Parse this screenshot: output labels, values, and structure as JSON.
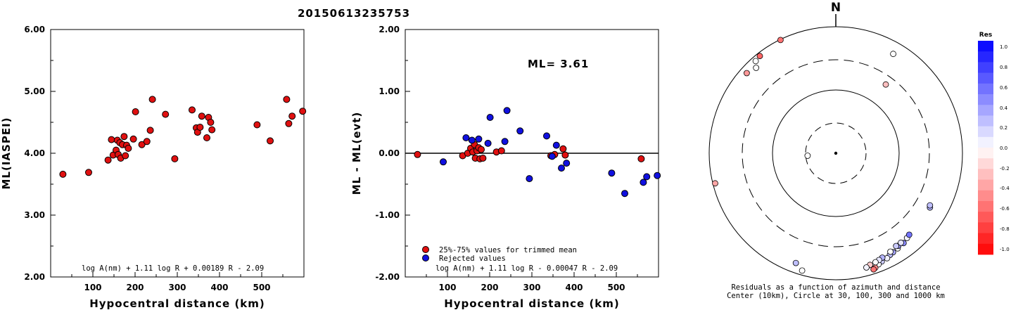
{
  "chart_data": [
    {
      "id": "left",
      "type": "scatter",
      "title": "20150613235753",
      "xlabel": "Hypocentral distance (km)",
      "ylabel": "ML(IASPEI)",
      "xlim": [
        0,
        600
      ],
      "ylim": [
        2.0,
        6.0
      ],
      "x_ticks": [
        100,
        200,
        300,
        400,
        500
      ],
      "y_ticks": [
        "2.00",
        "3.00",
        "4.00",
        "5.00",
        "6.00"
      ],
      "annotation": "log A(nm) + 1.11 log R + 0.00189 R - 2.09",
      "color": "#e01010",
      "points": [
        [
          29,
          3.66
        ],
        [
          90,
          3.69
        ],
        [
          136,
          3.89
        ],
        [
          144,
          4.22
        ],
        [
          148,
          3.97
        ],
        [
          155,
          4.05
        ],
        [
          158,
          4.21
        ],
        [
          160,
          3.98
        ],
        [
          164,
          4.17
        ],
        [
          166,
          3.92
        ],
        [
          170,
          4.14
        ],
        [
          174,
          4.27
        ],
        [
          177,
          3.96
        ],
        [
          180,
          4.13
        ],
        [
          184,
          4.08
        ],
        [
          196,
          4.23
        ],
        [
          201,
          4.67
        ],
        [
          216,
          4.14
        ],
        [
          228,
          4.19
        ],
        [
          236,
          4.37
        ],
        [
          241,
          4.87
        ],
        [
          272,
          4.63
        ],
        [
          294,
          3.91
        ],
        [
          335,
          4.7
        ],
        [
          345,
          4.41
        ],
        [
          348,
          4.34
        ],
        [
          354,
          4.42
        ],
        [
          358,
          4.6
        ],
        [
          370,
          4.25
        ],
        [
          374,
          4.58
        ],
        [
          379,
          4.5
        ],
        [
          382,
          4.38
        ],
        [
          489,
          4.46
        ],
        [
          520,
          4.2
        ],
        [
          559,
          4.87
        ],
        [
          564,
          4.48
        ],
        [
          572,
          4.6
        ],
        [
          597,
          4.68
        ]
      ]
    },
    {
      "id": "middle",
      "type": "scatter",
      "title": "",
      "xlabel": "Hypocentral distance (km)",
      "ylabel": "ML - ML(evt)",
      "xlim": [
        0,
        600
      ],
      "ylim": [
        -2.0,
        2.0
      ],
      "x_ticks": [
        100,
        200,
        300,
        400,
        500
      ],
      "y_ticks": [
        "-2.00",
        "-1.00",
        "0.00",
        "1.00",
        "2.00"
      ],
      "ml_label": "ML= 3.61",
      "annotation": "log A(nm) + 1.11 log R - 0.00047 R - 2.09",
      "legend": [
        {
          "label": "25%-75% values for trimmed mean",
          "color": "#e01010"
        },
        {
          "label": "Rejected values",
          "color": "#1010e0"
        }
      ],
      "series": [
        {
          "name": "25%-75% values for trimmed mean",
          "color": "#e01010",
          "points": [
            [
              29,
              -0.02
            ],
            [
              136,
              -0.04
            ],
            [
              148,
              0.0
            ],
            [
              155,
              0.08
            ],
            [
              160,
              0.02
            ],
            [
              164,
              0.14
            ],
            [
              166,
              -0.08
            ],
            [
              170,
              0.04
            ],
            [
              174,
              0.09
            ],
            [
              177,
              -0.09
            ],
            [
              180,
              0.06
            ],
            [
              184,
              -0.08
            ],
            [
              216,
              0.02
            ],
            [
              228,
              0.04
            ],
            [
              345,
              -0.04
            ],
            [
              354,
              -0.02
            ],
            [
              374,
              0.07
            ],
            [
              379,
              -0.03
            ],
            [
              559,
              -0.09
            ]
          ]
        },
        {
          "name": "Rejected values",
          "color": "#1010e0",
          "points": [
            [
              90,
              -0.14
            ],
            [
              144,
              0.25
            ],
            [
              158,
              0.21
            ],
            [
              174,
              0.23
            ],
            [
              196,
              0.16
            ],
            [
              201,
              0.58
            ],
            [
              236,
              0.19
            ],
            [
              241,
              0.69
            ],
            [
              272,
              0.36
            ],
            [
              294,
              -0.41
            ],
            [
              335,
              0.28
            ],
            [
              348,
              -0.05
            ],
            [
              358,
              0.13
            ],
            [
              370,
              -0.24
            ],
            [
              382,
              -0.16
            ],
            [
              489,
              -0.32
            ],
            [
              520,
              -0.65
            ],
            [
              564,
              -0.47
            ],
            [
              572,
              -0.38
            ],
            [
              597,
              -0.36
            ]
          ]
        }
      ]
    },
    {
      "id": "polar",
      "type": "scatter",
      "title": "N",
      "caption_line1": "Residuals as a function of azimuth and distance",
      "caption_line2": "Center (10km), Circle at 30, 100, 300 and 1000 km",
      "colorbar_title": "Res",
      "colorbar_ticks": [
        "1.0",
        "0.8",
        "0.6",
        "0.4",
        "0.2",
        "0.0",
        "-0.2",
        "-0.4",
        "-0.6",
        "-0.8",
        "-1.0"
      ],
      "colorbar_range": [
        -1.0,
        1.0
      ],
      "points": [
        {
          "az": 334,
          "dist": 980,
          "res": -0.55
        },
        {
          "az": 322,
          "dist": 890,
          "res": -0.6
        },
        {
          "az": 317,
          "dist": 700,
          "res": 0.0
        },
        {
          "az": 319,
          "dist": 850,
          "res": 0.0
        },
        {
          "az": 312,
          "dist": 780,
          "res": -0.4
        },
        {
          "az": 30,
          "dist": 650,
          "res": 0.0
        },
        {
          "az": 36,
          "dist": 220,
          "res": -0.25
        },
        {
          "az": 265,
          "dist": 28,
          "res": 0.0
        },
        {
          "az": 256,
          "dist": 920,
          "res": -0.35
        },
        {
          "az": 120,
          "dist": 520,
          "res": 0.3
        },
        {
          "az": 119,
          "dist": 500,
          "res": 0.25
        },
        {
          "az": 140,
          "dist": 560,
          "res": 0.05
        },
        {
          "az": 138,
          "dist": 540,
          "res": 0.55
        },
        {
          "az": 143,
          "dist": 600,
          "res": 0.45
        },
        {
          "az": 147,
          "dist": 620,
          "res": 0.0
        },
        {
          "az": 150,
          "dist": 640,
          "res": 0.35
        },
        {
          "az": 152,
          "dist": 660,
          "res": 0.25
        },
        {
          "az": 154,
          "dist": 700,
          "res": 0.05
        },
        {
          "az": 157,
          "dist": 720,
          "res": 0.2
        },
        {
          "az": 159,
          "dist": 760,
          "res": 0.0
        },
        {
          "az": 161,
          "dist": 820,
          "res": -0.45
        },
        {
          "az": 162,
          "dist": 850,
          "res": -0.55
        },
        {
          "az": 146,
          "dist": 580,
          "res": 0.4
        },
        {
          "az": 144,
          "dist": 560,
          "res": 0.1
        },
        {
          "az": 147,
          "dist": 560,
          "res": 0.2
        },
        {
          "az": 151,
          "dist": 600,
          "res": 0.0
        },
        {
          "az": 156,
          "dist": 640,
          "res": 0.3
        },
        {
          "az": 158,
          "dist": 660,
          "res": 0.1
        },
        {
          "az": 160,
          "dist": 680,
          "res": 0.0
        },
        {
          "az": 163,
          "dist": 700,
          "res": -0.2
        },
        {
          "az": 165,
          "dist": 740,
          "res": 0.05
        },
        {
          "az": 200,
          "dist": 700,
          "res": 0.25
        },
        {
          "az": 196,
          "dist": 850,
          "res": 0.0
        }
      ]
    }
  ]
}
